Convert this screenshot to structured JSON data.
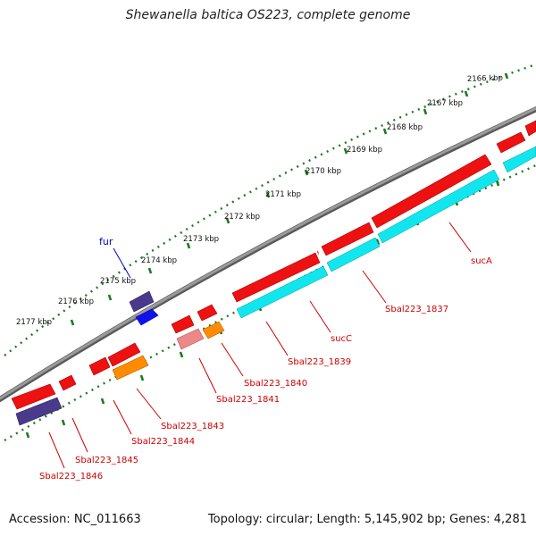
{
  "header": {
    "title": "Shewanella baltica OS223, complete genome"
  },
  "footer": {
    "accession": "Accession: NC_011663",
    "summary": "Topology: circular; Length: 5,145,902 bp; Genes: 4,281"
  },
  "scale_labels": [
    "2166 kbp",
    "2167 kbp",
    "2168 kbp",
    "2169 kbp",
    "2170 kbp",
    "2171 kbp",
    "2172 kbp",
    "2173 kbp",
    "2174 kbp",
    "2175 kbp",
    "2176 kbp",
    "2177 kbp"
  ],
  "gene_labels": {
    "fur": "fur",
    "sucA": "sucA",
    "sbal1837": "Sbal223_1837",
    "sucC": "sucC",
    "sbal1839": "Sbal223_1839",
    "sbal1840": "Sbal223_1840",
    "sbal1841": "Sbal223_1841",
    "sbal1843": "Sbal223_1843",
    "sbal1844": "Sbal223_1844",
    "sbal1845": "Sbal223_1845",
    "sbal1846": "Sbal223_1846"
  },
  "colors": {
    "backbone": "#8a8a8a",
    "tick": "#1a7a1a",
    "cds_red": "#ee1111",
    "rna_cyan": "#11e6ee",
    "orange": "#ff8c00",
    "pink": "#ee8888",
    "indigo": "#4a3a8c",
    "blue": "#1111ee",
    "label_red": "#cc0000",
    "label_blue": "#0000cc"
  }
}
